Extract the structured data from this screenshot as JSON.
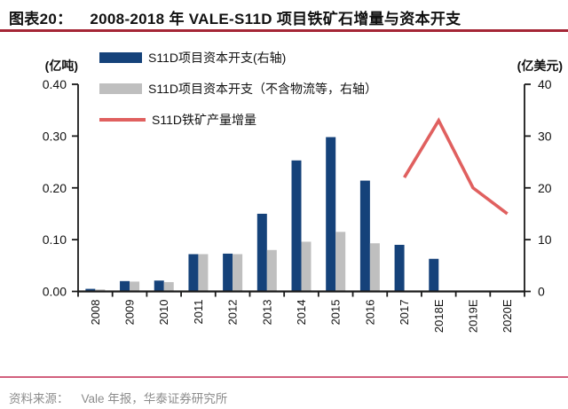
{
  "header": {
    "figure_label": "图表20：",
    "title": "2008-2018 年 VALE-S11D 项目铁矿石增量与资本开支"
  },
  "footer": {
    "source_label": "资料来源：",
    "source_text": "Vale 年报，华泰证券研究所"
  },
  "colors": {
    "bar_capex_total": "#15427a",
    "bar_capex_ex_logistics": "#bfbfbf",
    "line_output_increment": "#e0605f",
    "header_rule": "#a52636",
    "footer_rule": "#d2607d",
    "axis": "#1a1a1a",
    "source_text": "#8c8c8c"
  },
  "chart_data": {
    "type": "bar",
    "subtype": "dual-axis bar + line combo",
    "title": "2008-2018 年 VALE-S11D 项目铁矿石增量与资本开支",
    "categories": [
      "2008",
      "2009",
      "2010",
      "2011",
      "2012",
      "2013",
      "2014",
      "2015",
      "2016",
      "2017",
      "2018E",
      "2019E",
      "2020E"
    ],
    "series": [
      {
        "name": "S11D项目资本开支(右轴)",
        "type": "bar",
        "axis": "right",
        "color": "#15427a",
        "values": [
          0.5,
          2.0,
          2.1,
          7.2,
          7.3,
          15.0,
          25.3,
          29.8,
          21.4,
          9.0,
          6.3,
          null,
          null
        ]
      },
      {
        "name": "S11D项目资本开支（不含物流等，右轴）",
        "type": "bar",
        "axis": "right",
        "color": "#bfbfbf",
        "values": [
          0.4,
          1.9,
          1.8,
          7.2,
          7.2,
          8.0,
          9.6,
          11.5,
          9.3,
          null,
          null,
          null,
          null
        ]
      },
      {
        "name": "S11D铁矿产量增量",
        "type": "line",
        "axis": "left",
        "color": "#e0605f",
        "values": [
          null,
          null,
          null,
          null,
          null,
          null,
          null,
          null,
          null,
          0.22,
          0.33,
          0.2,
          0.15
        ]
      }
    ],
    "left_axis": {
      "label": "(亿吨)",
      "range": [
        0,
        0.4
      ],
      "ticks": [
        "0.40",
        "0.30",
        "0.20",
        "0.10",
        "0.00"
      ]
    },
    "right_axis": {
      "label": "(亿美元)",
      "range": [
        0,
        40
      ],
      "ticks": [
        "40",
        "30",
        "20",
        "10",
        "0"
      ]
    },
    "legend_position": "top-left",
    "grid": false
  }
}
